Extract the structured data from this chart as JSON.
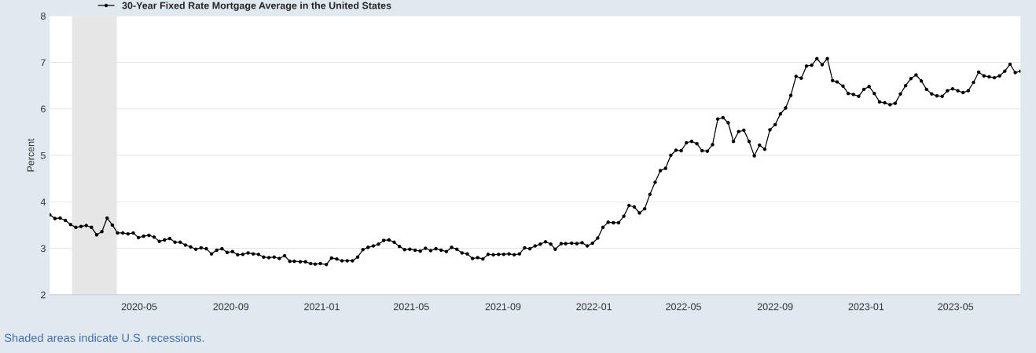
{
  "chart_data": {
    "type": "line",
    "ylabel": "Percent",
    "x": [
      "2020-01-02",
      "2020-01-09",
      "2020-01-16",
      "2020-01-23",
      "2020-01-30",
      "2020-02-06",
      "2020-02-13",
      "2020-02-20",
      "2020-02-27",
      "2020-03-05",
      "2020-03-12",
      "2020-03-19",
      "2020-03-26",
      "2020-04-02",
      "2020-04-09",
      "2020-04-16",
      "2020-04-23",
      "2020-04-30",
      "2020-05-07",
      "2020-05-14",
      "2020-05-21",
      "2020-05-28",
      "2020-06-04",
      "2020-06-11",
      "2020-06-18",
      "2020-06-25",
      "2020-07-02",
      "2020-07-09",
      "2020-07-16",
      "2020-07-23",
      "2020-07-30",
      "2020-08-06",
      "2020-08-13",
      "2020-08-20",
      "2020-08-27",
      "2020-09-03",
      "2020-09-10",
      "2020-09-17",
      "2020-09-24",
      "2020-10-01",
      "2020-10-08",
      "2020-10-15",
      "2020-10-22",
      "2020-10-29",
      "2020-11-05",
      "2020-11-12",
      "2020-11-19",
      "2020-11-25",
      "2020-12-03",
      "2020-12-10",
      "2020-12-17",
      "2020-12-23",
      "2020-12-30",
      "2021-01-07",
      "2021-01-14",
      "2021-01-21",
      "2021-01-28",
      "2021-02-04",
      "2021-02-11",
      "2021-02-18",
      "2021-02-25",
      "2021-03-04",
      "2021-03-11",
      "2021-03-18",
      "2021-03-25",
      "2021-04-01",
      "2021-04-08",
      "2021-04-15",
      "2021-04-22",
      "2021-04-29",
      "2021-05-06",
      "2021-05-13",
      "2021-05-20",
      "2021-05-27",
      "2021-06-03",
      "2021-06-10",
      "2021-06-17",
      "2021-06-24",
      "2021-07-01",
      "2021-07-08",
      "2021-07-15",
      "2021-07-22",
      "2021-07-29",
      "2021-08-05",
      "2021-08-12",
      "2021-08-19",
      "2021-08-26",
      "2021-09-02",
      "2021-09-09",
      "2021-09-16",
      "2021-09-23",
      "2021-09-30",
      "2021-10-07",
      "2021-10-14",
      "2021-10-21",
      "2021-10-28",
      "2021-11-04",
      "2021-11-10",
      "2021-11-18",
      "2021-11-24",
      "2021-12-02",
      "2021-12-09",
      "2021-12-16",
      "2021-12-23",
      "2021-12-30",
      "2022-01-06",
      "2022-01-13",
      "2022-01-20",
      "2022-01-27",
      "2022-02-03",
      "2022-02-10",
      "2022-02-17",
      "2022-02-24",
      "2022-03-03",
      "2022-03-10",
      "2022-03-17",
      "2022-03-24",
      "2022-03-31",
      "2022-04-07",
      "2022-04-14",
      "2022-04-21",
      "2022-04-28",
      "2022-05-05",
      "2022-05-12",
      "2022-05-19",
      "2022-05-26",
      "2022-06-02",
      "2022-06-09",
      "2022-06-16",
      "2022-06-23",
      "2022-06-30",
      "2022-07-07",
      "2022-07-14",
      "2022-07-21",
      "2022-07-28",
      "2022-08-04",
      "2022-08-11",
      "2022-08-18",
      "2022-08-25",
      "2022-09-01",
      "2022-09-08",
      "2022-09-15",
      "2022-09-22",
      "2022-09-29",
      "2022-10-06",
      "2022-10-13",
      "2022-10-20",
      "2022-10-27",
      "2022-11-03",
      "2022-11-10",
      "2022-11-17",
      "2022-11-23",
      "2022-12-01",
      "2022-12-08",
      "2022-12-15",
      "2022-12-22",
      "2022-12-29",
      "2023-01-05",
      "2023-01-12",
      "2023-01-19",
      "2023-01-26",
      "2023-02-02",
      "2023-02-09",
      "2023-02-16",
      "2023-02-23",
      "2023-03-02",
      "2023-03-09",
      "2023-03-16",
      "2023-03-23",
      "2023-03-30",
      "2023-04-06",
      "2023-04-13",
      "2023-04-20",
      "2023-04-27",
      "2023-05-04",
      "2023-05-11",
      "2023-05-18",
      "2023-05-25",
      "2023-06-01",
      "2023-06-08",
      "2023-06-15",
      "2023-06-22",
      "2023-06-29",
      "2023-07-06",
      "2023-07-13",
      "2023-07-20",
      "2023-07-27"
    ],
    "series": [
      {
        "name": "30-Year Fixed Rate Mortgage Average in the United States",
        "color": "#000000",
        "values": [
          3.72,
          3.64,
          3.65,
          3.6,
          3.51,
          3.45,
          3.47,
          3.49,
          3.45,
          3.29,
          3.36,
          3.65,
          3.5,
          3.33,
          3.33,
          3.31,
          3.33,
          3.23,
          3.26,
          3.28,
          3.24,
          3.15,
          3.18,
          3.21,
          3.13,
          3.13,
          3.07,
          3.03,
          2.98,
          3.01,
          2.99,
          2.88,
          2.96,
          2.99,
          2.91,
          2.93,
          2.86,
          2.87,
          2.9,
          2.88,
          2.87,
          2.81,
          2.8,
          2.81,
          2.78,
          2.84,
          2.72,
          2.72,
          2.71,
          2.71,
          2.67,
          2.66,
          2.67,
          2.65,
          2.79,
          2.77,
          2.73,
          2.73,
          2.73,
          2.81,
          2.97,
          3.02,
          3.05,
          3.09,
          3.17,
          3.18,
          3.13,
          3.04,
          2.97,
          2.98,
          2.96,
          2.94,
          3.0,
          2.95,
          2.99,
          2.96,
          2.93,
          3.02,
          2.98,
          2.9,
          2.88,
          2.78,
          2.8,
          2.77,
          2.87,
          2.86,
          2.87,
          2.87,
          2.88,
          2.86,
          2.88,
          3.01,
          2.99,
          3.05,
          3.09,
          3.14,
          3.09,
          2.98,
          3.1,
          3.1,
          3.11,
          3.1,
          3.12,
          3.05,
          3.11,
          3.22,
          3.45,
          3.56,
          3.55,
          3.55,
          3.69,
          3.92,
          3.89,
          3.76,
          3.85,
          4.16,
          4.42,
          4.67,
          4.72,
          5.0,
          5.11,
          5.1,
          5.27,
          5.3,
          5.25,
          5.1,
          5.09,
          5.23,
          5.78,
          5.81,
          5.7,
          5.3,
          5.51,
          5.54,
          5.3,
          4.99,
          5.22,
          5.13,
          5.55,
          5.66,
          5.89,
          6.02,
          6.29,
          6.7,
          6.66,
          6.92,
          6.94,
          7.08,
          6.95,
          7.08,
          6.61,
          6.58,
          6.49,
          6.33,
          6.31,
          6.27,
          6.42,
          6.48,
          6.33,
          6.15,
          6.13,
          6.09,
          6.12,
          6.32,
          6.5,
          6.65,
          6.73,
          6.6,
          6.42,
          6.32,
          6.28,
          6.27,
          6.39,
          6.43,
          6.39,
          6.35,
          6.39,
          6.57,
          6.79,
          6.71,
          6.69,
          6.67,
          6.71,
          6.81,
          6.96,
          6.78,
          6.81
        ]
      }
    ],
    "xlim": [
      "2020-01-02",
      "2023-07-27"
    ],
    "xticks": [
      {
        "value": "2020-05-01",
        "label": "2020-05"
      },
      {
        "value": "2020-09-01",
        "label": "2020-09"
      },
      {
        "value": "2021-01-01",
        "label": "2021-01"
      },
      {
        "value": "2021-05-01",
        "label": "2021-05"
      },
      {
        "value": "2021-09-01",
        "label": "2021-09"
      },
      {
        "value": "2022-01-01",
        "label": "2022-01"
      },
      {
        "value": "2022-05-01",
        "label": "2022-05"
      },
      {
        "value": "2022-09-01",
        "label": "2022-09"
      },
      {
        "value": "2023-01-01",
        "label": "2023-01"
      },
      {
        "value": "2023-05-01",
        "label": "2023-05"
      }
    ],
    "ylim": [
      2,
      8
    ],
    "yticks": [
      2,
      3,
      4,
      5,
      6,
      7,
      8
    ],
    "bands": [
      {
        "axis": "x",
        "from": "2020-02-01",
        "to": "2020-04-01",
        "color": "#e6e6e6"
      }
    ],
    "annotations": [
      "Shaded areas indicate U.S. recessions."
    ],
    "grid": "y",
    "legend": "top left",
    "marker": "circle",
    "line_style": "solid"
  }
}
